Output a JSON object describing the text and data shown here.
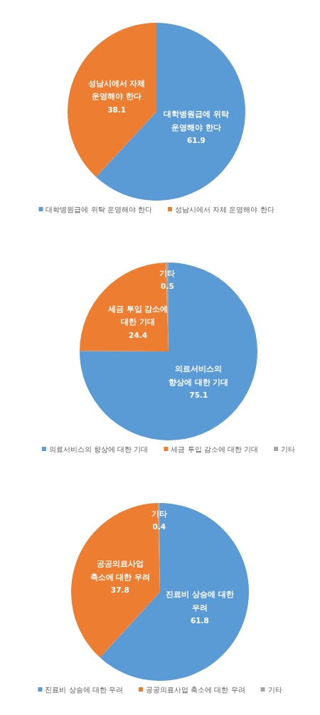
{
  "chart_data": [
    {
      "type": "pie",
      "categories": [
        "대학병원급에 위탁 운영해야 한다",
        "성남시에서 자체 운영해야 한다"
      ],
      "values": [
        61.9,
        38.1
      ],
      "colors": [
        "#5b9bd5",
        "#ed7d31"
      ],
      "data_labels": true,
      "legend": "bottom"
    },
    {
      "type": "pie",
      "categories": [
        "의료서비스의 향상에 대한 기대",
        "세금 투입 감소에 대한 기대",
        "기타"
      ],
      "values": [
        75.1,
        24.4,
        0.5
      ],
      "colors": [
        "#5b9bd5",
        "#ed7d31",
        "#a5a5a5"
      ],
      "data_labels": true,
      "legend": "bottom"
    },
    {
      "type": "pie",
      "categories": [
        "진료비 상승에 대한 우려",
        "공공의료사업 축소에 대한 우려",
        "기타"
      ],
      "values": [
        61.8,
        37.8,
        0.4
      ],
      "colors": [
        "#5b9bd5",
        "#ed7d31",
        "#a5a5a5"
      ],
      "data_labels": true,
      "legend": "bottom"
    }
  ]
}
